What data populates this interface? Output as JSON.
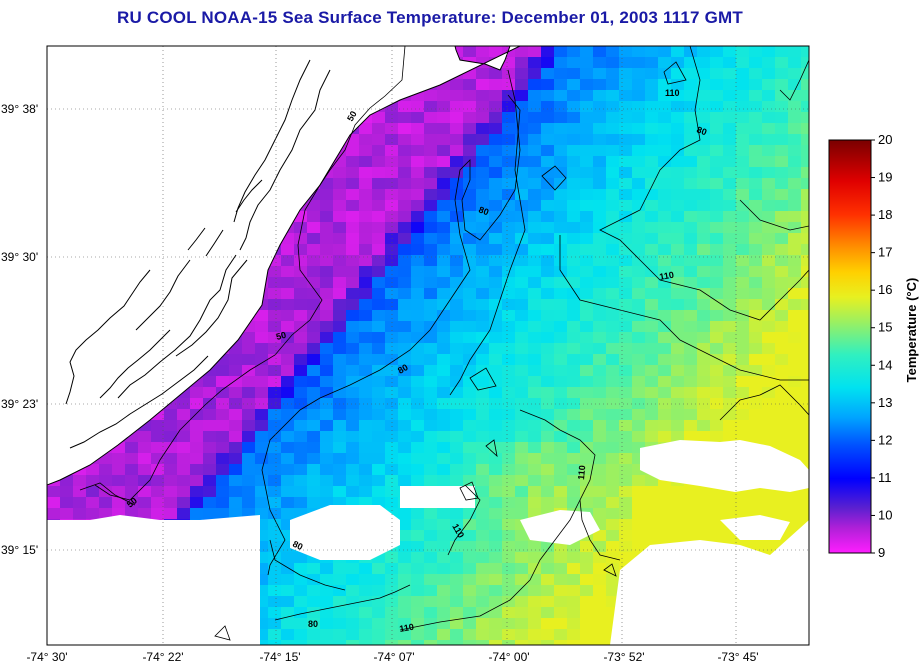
{
  "title": "RU COOL  NOAA-15  Sea Surface Temperature:  December 01, 2003 1117 GMT",
  "map": {
    "x_ticks": [
      "-74° 30'",
      "-74° 22'",
      "-74° 15'",
      "-74° 07'",
      "-74° 00'",
      "-73° 52'",
      "-73° 45'"
    ],
    "y_ticks": [
      "39° 38'",
      "39° 30'",
      "39° 23'",
      "39° 15'"
    ],
    "contour_labels": [
      "50",
      "50",
      "50",
      "80",
      "80",
      "80",
      "80",
      "80",
      "110",
      "110",
      "110",
      "110"
    ]
  },
  "colorbar": {
    "title": "Temperature (°C)",
    "ticks": [
      "20",
      "19",
      "18",
      "17",
      "16",
      "15",
      "14",
      "13",
      "12",
      "11",
      "10",
      "9"
    ],
    "min": 9,
    "max": 20
  },
  "colors": {
    "title": "#1a1aa6",
    "land": "#ffffff",
    "coast": "#000000"
  }
}
